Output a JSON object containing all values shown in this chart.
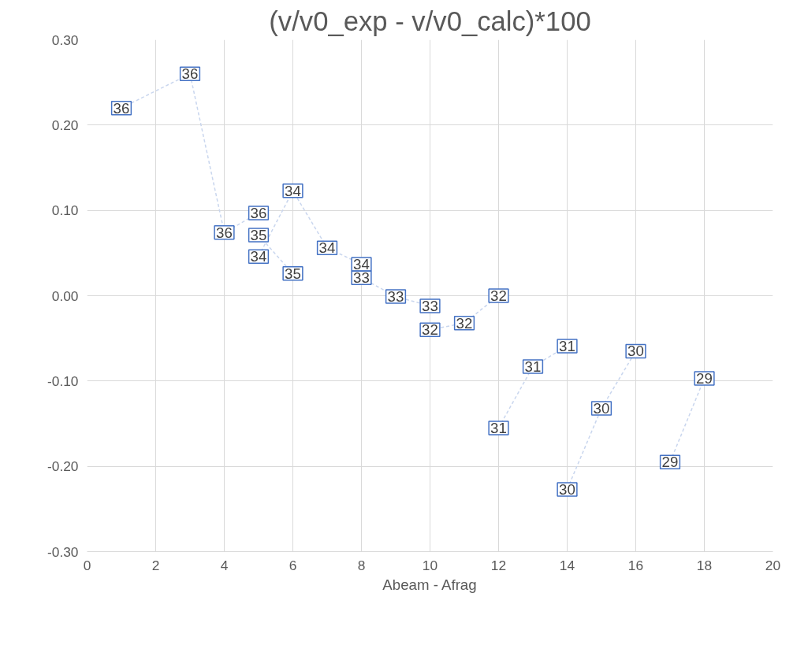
{
  "chart_data": {
    "type": "line",
    "title": "(v/v0_exp - v/v0_calc)*100",
    "xlabel": "Abeam - Afrag",
    "xlim": [
      0,
      20
    ],
    "xticks": [
      0,
      2,
      4,
      6,
      8,
      10,
      12,
      14,
      16,
      18,
      20
    ],
    "ylim": [
      -0.3,
      0.3
    ],
    "yticks": [
      {
        "value": -0.3,
        "label": "-0.30"
      },
      {
        "value": -0.2,
        "label": "-0.20"
      },
      {
        "value": -0.1,
        "label": "-0.10"
      },
      {
        "value": 0,
        "label": "0.00"
      },
      {
        "value": 0.1,
        "label": "0.10"
      },
      {
        "value": 0.2,
        "label": "0.20"
      },
      {
        "value": 0.3,
        "label": "0.30"
      }
    ],
    "grid": true,
    "marker": "square",
    "line_style": "dashed",
    "series": [
      {
        "color": "#c9d6ee",
        "x": [
          1,
          3,
          4,
          5
        ],
        "values": [
          0.22,
          0.26,
          0.074,
          0.097
        ]
      },
      {
        "color": "#c9d6ee",
        "x": [
          5,
          6
        ],
        "values": [
          0.071,
          0.026
        ]
      },
      {
        "color": "#c9d6ee",
        "x": [
          5,
          6,
          7,
          8
        ],
        "values": [
          0.046,
          0.123,
          0.056,
          0.037
        ]
      },
      {
        "color": "#c9d6ee",
        "x": [
          8,
          9,
          10
        ],
        "values": [
          0.021,
          -0.001,
          -0.012
        ]
      },
      {
        "color": "#c9d6ee",
        "x": [
          10,
          11,
          12
        ],
        "values": [
          -0.04,
          -0.032,
          0.0
        ]
      },
      {
        "color": "#c9d6ee",
        "x": [
          12,
          13,
          14
        ],
        "values": [
          -0.155,
          -0.083,
          -0.059
        ]
      },
      {
        "color": "#c9d6ee",
        "x": [
          14,
          15,
          16
        ],
        "values": [
          -0.227,
          -0.132,
          -0.065
        ]
      },
      {
        "color": "#c9d6ee",
        "x": [
          17,
          18
        ],
        "values": [
          -0.195,
          -0.097
        ]
      }
    ],
    "annotations": [
      {
        "text": "36",
        "x": 1,
        "y": 0.22
      },
      {
        "text": "36",
        "x": 3,
        "y": 0.26
      },
      {
        "text": "36",
        "x": 4,
        "y": 0.074
      },
      {
        "text": "36",
        "x": 5,
        "y": 0.097
      },
      {
        "text": "35",
        "x": 5,
        "y": 0.071
      },
      {
        "text": "35",
        "x": 6,
        "y": 0.026
      },
      {
        "text": "34",
        "x": 5,
        "y": 0.046
      },
      {
        "text": "34",
        "x": 6,
        "y": 0.123
      },
      {
        "text": "34",
        "x": 7,
        "y": 0.056
      },
      {
        "text": "34",
        "x": 8,
        "y": 0.037
      },
      {
        "text": "33",
        "x": 8,
        "y": 0.021
      },
      {
        "text": "33",
        "x": 9,
        "y": -0.001
      },
      {
        "text": "33",
        "x": 10,
        "y": -0.012
      },
      {
        "text": "32",
        "x": 10,
        "y": -0.04
      },
      {
        "text": "32",
        "x": 11,
        "y": -0.032
      },
      {
        "text": "32",
        "x": 12,
        "y": 0.0
      },
      {
        "text": "31",
        "x": 12,
        "y": -0.155
      },
      {
        "text": "31",
        "x": 13,
        "y": -0.083
      },
      {
        "text": "31",
        "x": 14,
        "y": -0.059
      },
      {
        "text": "30",
        "x": 14,
        "y": -0.227
      },
      {
        "text": "30",
        "x": 15,
        "y": -0.132
      },
      {
        "text": "30",
        "x": 16,
        "y": -0.065
      },
      {
        "text": "29",
        "x": 17,
        "y": -0.195
      },
      {
        "text": "29",
        "x": 18,
        "y": -0.097
      }
    ]
  }
}
